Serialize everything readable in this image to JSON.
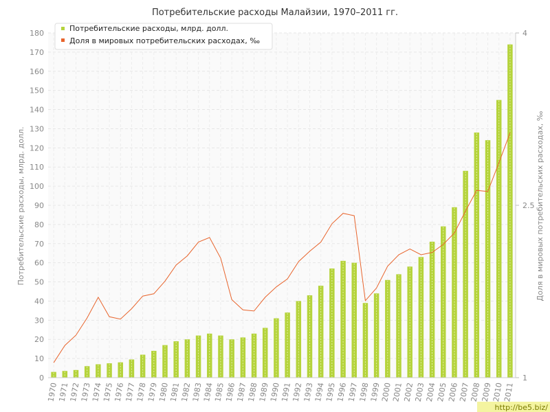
{
  "chart_data": {
    "type": "bar",
    "title": "Потребительские расходы Малайзии, 1970–2011 гг.",
    "categories": [
      "1970",
      "1971",
      "1972",
      "1973",
      "1974",
      "1975",
      "1976",
      "1977",
      "1978",
      "1979",
      "1980",
      "1981",
      "1982",
      "1983",
      "1984",
      "1985",
      "1986",
      "1987",
      "1988",
      "1989",
      "1990",
      "1991",
      "1992",
      "1993",
      "1994",
      "1995",
      "1996",
      "1997",
      "1998",
      "1999",
      "2000",
      "2001",
      "2002",
      "2003",
      "2004",
      "2005",
      "2006",
      "2007",
      "2008",
      "2009",
      "2010",
      "2011"
    ],
    "series": [
      {
        "name": "Потребительские расходы, млрд. долл.",
        "type": "bar",
        "axis": "left",
        "color": "#b5d33c",
        "values": [
          3,
          3.5,
          4,
          6,
          7,
          7.5,
          8,
          9.5,
          12,
          14,
          17,
          19,
          20,
          22,
          23,
          22,
          20,
          21,
          23,
          26,
          31,
          34,
          40,
          43,
          48,
          57,
          61,
          60,
          39,
          44,
          51,
          54,
          58,
          63,
          71,
          79,
          89,
          108,
          128,
          124,
          145,
          174
        ]
      },
      {
        "name": "Доля в мировых потребительских расходах, ‰",
        "type": "line",
        "axis": "right",
        "color": "#e8642c",
        "values": [
          1.13,
          1.28,
          1.37,
          1.52,
          1.7,
          1.53,
          1.51,
          1.6,
          1.71,
          1.73,
          1.84,
          1.98,
          2.06,
          2.18,
          2.22,
          2.04,
          1.68,
          1.59,
          1.58,
          1.7,
          1.79,
          1.86,
          2.01,
          2.1,
          2.18,
          2.34,
          2.43,
          2.41,
          1.67,
          1.78,
          1.97,
          2.07,
          2.12,
          2.07,
          2.09,
          2.16,
          2.26,
          2.45,
          2.63,
          2.62,
          2.87,
          3.13
        ]
      }
    ],
    "yaxis_left": {
      "label": "Потребительские расходы, млрд. долл.",
      "min": 0,
      "max": 180,
      "ticks": [
        "0",
        "10",
        "20",
        "30",
        "40",
        "50",
        "60",
        "70",
        "80",
        "90",
        "100",
        "110",
        "120",
        "130",
        "140",
        "150",
        "160",
        "170",
        "180"
      ]
    },
    "yaxis_right": {
      "label": "Доля в мировых потребительских расходах, ‰",
      "min": 1,
      "max": 4,
      "ticks": [
        {
          "value": 1,
          "label": "1"
        },
        {
          "value": 2.5,
          "label": "2.5"
        },
        {
          "value": 4,
          "label": "4"
        }
      ]
    },
    "grid": true,
    "legend": "top-left",
    "watermark": "http://be5.biz/"
  }
}
